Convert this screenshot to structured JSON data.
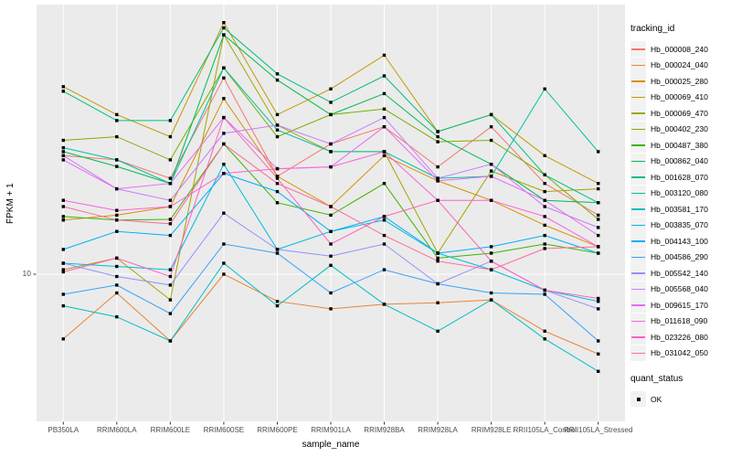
{
  "figure": {
    "panel_bg": "#EBEBEB",
    "grid_color": "#FFFFFF",
    "tick_color": "#333333",
    "tick_label_color": "#4d4d4d",
    "point_color": "#000000",
    "y_tick_label": "10"
  },
  "legend": {
    "tracking_title": "tracking_id",
    "quant_title": "quant_status",
    "quant_items": [
      {
        "label": "OK",
        "symbol": "black-square-point"
      }
    ]
  },
  "chart_data": {
    "type": "line",
    "title": "",
    "xlabel": "sample_name",
    "ylabel": "FPKM + 1",
    "y_scale": "log10",
    "y_ticks": [
      10
    ],
    "ylim": [
      2.8,
      104
    ],
    "grid": true,
    "legend_position": "right",
    "point_marker": "filled-black-square",
    "categories": [
      "PB350LA",
      "RRIM600LA",
      "RRIM600LE",
      "RRIM600SE",
      "RRIM600PE",
      "RRIM901LA",
      "RRIM928BA",
      "RRIM928LA",
      "RRIM928LE",
      "RRII105LA_Control",
      "RRII105LA_Stressed"
    ],
    "series": [
      {
        "name": "Hb_000008_240",
        "color": "#F8766D",
        "values": [
          28,
          27,
          23,
          55,
          23.4,
          31,
          36,
          25.4,
          36,
          22,
          16.7
        ]
      },
      {
        "name": "Hb_000024_040",
        "color": "#EA8331",
        "values": [
          5.7,
          8.5,
          5.6,
          10,
          7.9,
          7.4,
          7.7,
          7.8,
          8.0,
          6.1,
          5.0
        ]
      },
      {
        "name": "Hb_000025_280",
        "color": "#D89000",
        "values": [
          16,
          16.7,
          18,
          46,
          23.4,
          18,
          28,
          22.5,
          19,
          15.3,
          12.7
        ]
      },
      {
        "name": "Hb_000069_410",
        "color": "#C09B00",
        "values": [
          51,
          40,
          33,
          89,
          40,
          50,
          67,
          34.5,
          40,
          28,
          22
        ]
      },
      {
        "name": "Hb_000069_470",
        "color": "#A3A500",
        "values": [
          10.4,
          11.5,
          8.0,
          80,
          36.5,
          29,
          29,
          12,
          24.5,
          20.5,
          21
        ]
      },
      {
        "name": "Hb_000402_230",
        "color": "#7CAE00",
        "values": [
          32,
          33,
          27,
          60,
          33,
          40,
          42,
          31.6,
          32,
          23.7,
          16.1
        ]
      },
      {
        "name": "Hb_000487_380",
        "color": "#39B600",
        "values": [
          16.5,
          16,
          16.1,
          31,
          18.6,
          16.7,
          22,
          11.5,
          12,
          13,
          12
        ]
      },
      {
        "name": "Hb_000862_040",
        "color": "#00BB4E",
        "values": [
          29,
          25.5,
          22,
          80,
          54,
          40,
          48,
          33,
          26,
          19,
          18.6
        ]
      },
      {
        "name": "Hb_001628_070",
        "color": "#00BF7D",
        "values": [
          49,
          38,
          38,
          85,
          57,
          44.5,
          56,
          34.5,
          40,
          23.7,
          18.6
        ]
      },
      {
        "name": "Hb_003120_080",
        "color": "#00C1A3",
        "values": [
          30,
          27,
          22,
          60,
          35,
          29,
          29,
          23,
          23.4,
          50,
          29
        ]
      },
      {
        "name": "Hb_003581_170",
        "color": "#00BFC4",
        "values": [
          7.6,
          6.9,
          5.6,
          11,
          7.6,
          10.8,
          7.7,
          6.1,
          8.0,
          5.7,
          4.3
        ]
      },
      {
        "name": "Hb_003835_070",
        "color": "#00BAE0",
        "values": [
          11,
          10.7,
          10.4,
          26,
          12.4,
          14.5,
          16,
          12,
          10.4,
          8.7,
          7.9
        ]
      },
      {
        "name": "Hb_004143_100",
        "color": "#00B0F6",
        "values": [
          12.4,
          14.5,
          14,
          24,
          20.5,
          14.5,
          16.5,
          12,
          12.7,
          14,
          12
        ]
      },
      {
        "name": "Hb_004586_290",
        "color": "#35A2FF",
        "values": [
          8.4,
          9.1,
          7.1,
          13,
          12,
          8.5,
          10.4,
          9.2,
          8.5,
          8.4,
          5.6
        ]
      },
      {
        "name": "Hb_005542_140",
        "color": "#9590FF",
        "values": [
          11,
          9.8,
          9.1,
          17,
          12.4,
          11.7,
          13,
          9.2,
          11.2,
          8.7,
          7.4
        ]
      },
      {
        "name": "Hb_005568_040",
        "color": "#C77CFF",
        "values": [
          28,
          21,
          19,
          34,
          36.5,
          31,
          39,
          23,
          26,
          18,
          15
        ]
      },
      {
        "name": "Hb_009615_170",
        "color": "#E76BF3",
        "values": [
          27,
          21,
          22,
          39,
          25,
          25.4,
          36,
          22.5,
          23.4,
          19,
          14
        ]
      },
      {
        "name": "Hb_011618_090",
        "color": "#FA62DB",
        "values": [
          19,
          17.4,
          18,
          24,
          25,
          25.4,
          29,
          19,
          19,
          16.5,
          12.7
        ]
      },
      {
        "name": "Hb_023226_080",
        "color": "#FF62BC",
        "values": [
          10.2,
          11.5,
          9.8,
          39,
          23,
          13,
          16.5,
          19,
          11.2,
          8.7,
          8.1
        ]
      },
      {
        "name": "Hb_031042_050",
        "color": "#FF6A98",
        "values": [
          18,
          16,
          15.5,
          31,
          22,
          18,
          14,
          11.2,
          10.4,
          12.5,
          12.7
        ]
      }
    ]
  }
}
